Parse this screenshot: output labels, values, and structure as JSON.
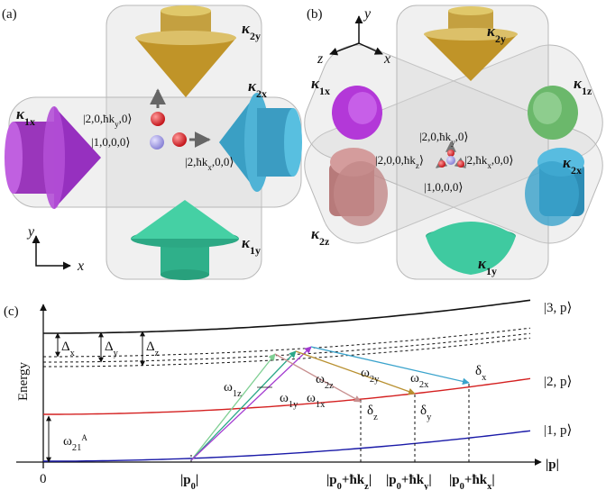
{
  "panel_a": {
    "tag": [
      "(a)"
    ],
    "kappa_2y": [
      "κ",
      "2y"
    ],
    "kappa_1x": [
      "κ",
      "1x"
    ],
    "kappa_2x": [
      "κ",
      "2x"
    ],
    "kappa_1y": [
      "κ",
      "1y"
    ],
    "ket_y": [
      "|2,0,ħk",
      "y",
      ",0⟩"
    ],
    "ket_0": [
      "|1,0,0,0⟩"
    ],
    "ket_x": [
      "|2,ħk",
      "x",
      ",0,0⟩"
    ],
    "axis_y": [
      "y"
    ],
    "axis_x": [
      "x"
    ]
  },
  "panel_b": {
    "tag": [
      "(b)"
    ],
    "axis_y": [
      "y"
    ],
    "axis_z": [
      "z"
    ],
    "axis_x": [
      "x"
    ],
    "kappa_2y": [
      "κ",
      "2y"
    ],
    "kappa_1x": [
      "κ",
      "1x"
    ],
    "kappa_1z": [
      "κ",
      "1z"
    ],
    "kappa_2z": [
      "κ",
      "2z"
    ],
    "kappa_2x": [
      "κ",
      "2x"
    ],
    "kappa_1y": [
      "κ",
      "1y"
    ],
    "ket_y": [
      "|2,0,ħk",
      "y",
      ",0⟩"
    ],
    "ket_z": [
      "|2,0,0,ħk",
      "z",
      "⟩"
    ],
    "ket_x": [
      "|2,ħk",
      "x",
      ",0,0⟩"
    ],
    "ket_0": [
      "|1,0,0,0⟩"
    ]
  },
  "panel_c": {
    "tag": [
      "(c)"
    ],
    "y_label": [
      "Energy"
    ],
    "level_3": [
      "|3, p⟩"
    ],
    "level_2": [
      "|2, p⟩"
    ],
    "level_1": [
      "|1, p⟩"
    ],
    "x_label": [
      "|p|"
    ],
    "origin": [
      "0"
    ],
    "p0": [
      "|p",
      "0",
      "|"
    ],
    "p0_kz": [
      "|p",
      "0",
      "+ħk",
      "z",
      "|"
    ],
    "p0_ky": [
      "|p",
      "0",
      "+ħk",
      "y",
      "|"
    ],
    "p0_kx": [
      "|p",
      "0",
      "+ħk",
      "x",
      "|"
    ],
    "delta_x": [
      "Δ",
      "x"
    ],
    "delta_y": [
      "Δ",
      "y"
    ],
    "delta_z": [
      "Δ",
      "z"
    ],
    "omega_1z": [
      "ω",
      "1z"
    ],
    "omega_2z": [
      "ω",
      "2z"
    ],
    "omega_2y": [
      "ω",
      "2y"
    ],
    "omega_2x": [
      "ω",
      "2x"
    ],
    "omega_1y": [
      "ω",
      "1y"
    ],
    "omega_1x": [
      "ω",
      "1x"
    ],
    "small_delta_x": [
      "δ",
      "x"
    ],
    "small_delta_z": [
      "δ",
      "z"
    ],
    "small_delta_y": [
      "δ",
      "y"
    ],
    "omega_21A": [
      "ω",
      "21",
      "A"
    ]
  }
}
